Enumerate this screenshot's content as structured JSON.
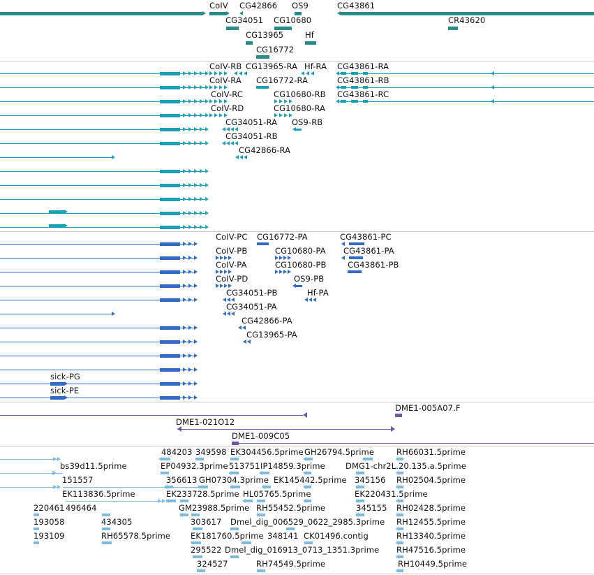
{
  "colors": {
    "gene": "#2b8a8a",
    "transcript_set1": "#1aa0b8",
    "transcript_set2": "#2f6cc6",
    "clone": "#7355a8",
    "est": "#7fbadf",
    "separator": "#c8c8c8"
  },
  "gene_labels": [
    "CoIV",
    "CG42866",
    "OS9",
    "CG43861",
    "CG34051",
    "CG10680",
    "CR43620",
    "CG13965",
    "Hf",
    "CG16772"
  ],
  "transcripts1_labels": [
    "CoIV-RB",
    "CG13965-RA",
    "Hf-RA",
    "CG43861-RA",
    "CoIV-RA",
    "CG16772-RA",
    "CG43861-RB",
    "CoIV-RC",
    "CG10680-RB",
    "CG43861-RC",
    "CoIV-RD",
    "CG10680-RA",
    "CG34051-RA",
    "OS9-RB",
    "CG34051-RB",
    "CG42866-RA"
  ],
  "transcripts2_labels": [
    "CoIV-PC",
    "CG16772-PA",
    "CG43861-PC",
    "CoIV-PB",
    "CG10680-PA",
    "CG43861-PA",
    "CoIV-PA",
    "CG10680-PB",
    "CG43861-PB",
    "CoIV-PD",
    "OS9-PB",
    "CG34051-PB",
    "Hf-PA",
    "CG34051-PA",
    "CG42866-PA",
    "CG13965-PA",
    "sick-PG",
    "sick-PE"
  ],
  "clone_labels": [
    "DME1-005A07.F",
    "DME1-021O12",
    "DME1-009C05"
  ],
  "est_labels": [
    "484203",
    "349598",
    "EK304456.5prime",
    "GH26794.5prime",
    "RH66031.5prime",
    "bs39d11.5prime",
    "EP04932.3prime",
    "513751",
    "IP14859.3prime",
    "DMG1-chr2L.20.135.a.5prime",
    "151557",
    "356613",
    "GH07304.3prime",
    "EK145442.5prime",
    "345156",
    "RH02504.5prime",
    "EK113836.5prime",
    "EK233728.5prime",
    "HL05765.5prime",
    "EK220431.5prime",
    "220461",
    "496464",
    "GM23988.5prime",
    "RH55452.5prime",
    "345155",
    "RH02428.5prime",
    "193058",
    "434305",
    "303617",
    "Dmel_dig_006529_0622_2985.3prime",
    "RH12455.5prime",
    "193109",
    "RH65578.5prime",
    "EK181760.5prime",
    "348141",
    "CK01496.contig",
    "RH13340.5prime",
    "295522",
    "Dmel_dig_016913_0713_1351.3prime",
    "RH47516.5prime",
    "324527",
    "RH74549.5prime",
    "RH10449.5prime"
  ]
}
